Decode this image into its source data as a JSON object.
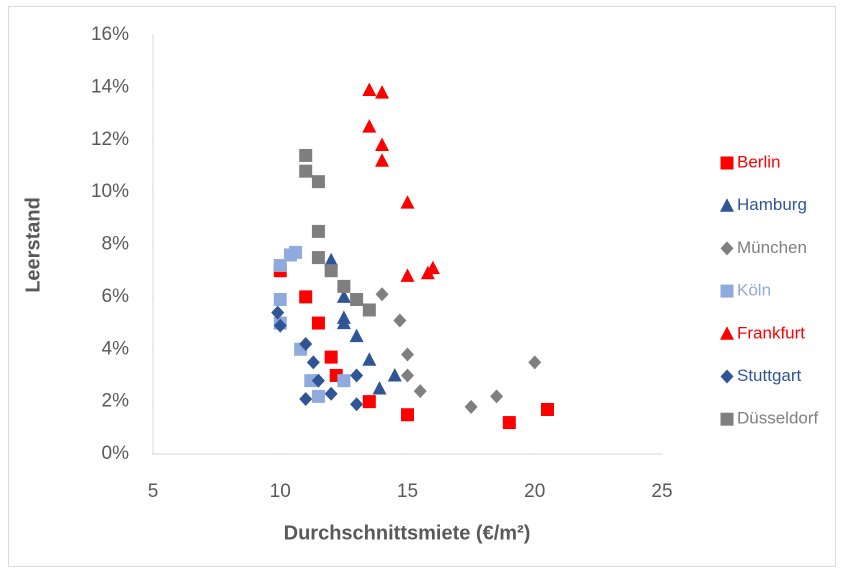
{
  "chart_data": {
    "type": "scatter",
    "x_label": "Durchschnittsmiete (€/m²)",
    "y_label": "Leerstand",
    "xlim": [
      5,
      25
    ],
    "xticks": [
      5,
      10,
      15,
      20,
      25
    ],
    "ylim": [
      0,
      16
    ],
    "yticks": [
      {
        "value": 0,
        "label": "0%"
      },
      {
        "value": 2,
        "label": "2%"
      },
      {
        "value": 4,
        "label": "4%"
      },
      {
        "value": 6,
        "label": "6%"
      },
      {
        "value": 8,
        "label": "8%"
      },
      {
        "value": 10,
        "label": "10%"
      },
      {
        "value": 12,
        "label": "12%"
      },
      {
        "value": 14,
        "label": "14%"
      },
      {
        "value": 16,
        "label": "16%"
      }
    ],
    "legend": "right",
    "series": [
      {
        "name": "Berlin",
        "color": "#ff0000",
        "marker": "square",
        "x": [
          10,
          11,
          11.5,
          12,
          12.2,
          13.5,
          15,
          19,
          20.5
        ],
        "y": [
          7.0,
          6.0,
          5.0,
          3.7,
          3.0,
          2.0,
          1.5,
          1.2,
          1.7
        ]
      },
      {
        "name": "Hamburg",
        "color": "#2f5597",
        "marker": "triangle",
        "x": [
          12,
          12.5,
          12.5,
          12.5,
          13,
          13.5,
          13.9,
          14.5
        ],
        "y": [
          7.4,
          6.0,
          5.2,
          5.0,
          4.5,
          3.6,
          2.5,
          3.0
        ]
      },
      {
        "name": "München",
        "color": "#7f7f7f",
        "marker": "diamond",
        "x": [
          14,
          14.7,
          15,
          15,
          15.5,
          17.5,
          18.5,
          20
        ],
        "y": [
          6.1,
          5.1,
          3.8,
          3.0,
          2.4,
          1.8,
          2.2,
          3.5
        ]
      },
      {
        "name": "Köln",
        "color": "#8faadc",
        "marker": "square",
        "x": [
          10,
          10.4,
          10.6,
          10,
          10,
          10.8,
          11.2,
          11.5,
          12.5
        ],
        "y": [
          7.2,
          7.6,
          7.7,
          5.9,
          5.0,
          4.0,
          2.8,
          2.2,
          2.8
        ]
      },
      {
        "name": "Frankfurt",
        "color": "#ff0000",
        "marker": "triangle",
        "x": [
          13.5,
          14,
          13.5,
          14,
          14,
          15,
          15,
          15.8,
          16
        ],
        "y": [
          13.9,
          13.8,
          12.5,
          11.8,
          11.2,
          9.6,
          6.8,
          6.9,
          7.1
        ]
      },
      {
        "name": "Stuttgart",
        "color": "#2f5597",
        "marker": "diamond",
        "x": [
          9.9,
          10,
          11,
          11.3,
          11.5,
          11,
          12,
          13,
          13
        ],
        "y": [
          5.4,
          4.9,
          4.2,
          3.5,
          2.8,
          2.1,
          2.3,
          3.0,
          1.9
        ]
      },
      {
        "name": "Düsseldorf",
        "color": "#7f7f7f",
        "marker": "square",
        "x": [
          11,
          11,
          11.5,
          11.5,
          11.5,
          12,
          12.5,
          13,
          13.5
        ],
        "y": [
          11.4,
          10.8,
          10.4,
          8.5,
          7.5,
          7.0,
          6.4,
          5.9,
          5.5
        ]
      }
    ]
  }
}
